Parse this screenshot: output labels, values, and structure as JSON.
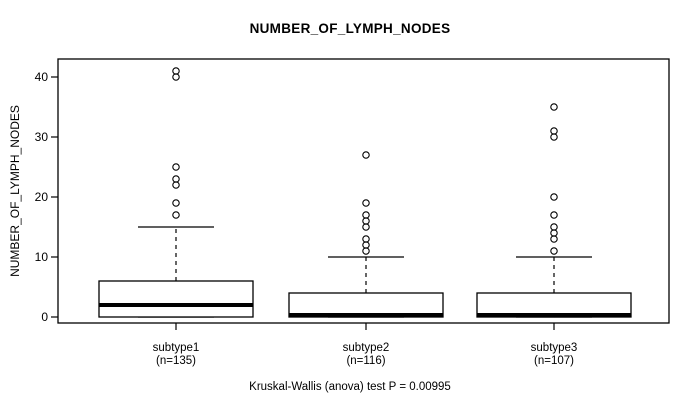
{
  "chart_data": {
    "type": "boxplot",
    "title": "NUMBER_OF_LYMPH_NODES",
    "ylabel": "NUMBER_OF_LYMPH_NODES",
    "xlabel": "",
    "annotation": "Kruskal-Wallis (anova) test P = 0.00995",
    "ylim": [
      -1,
      43
    ],
    "yticks": [
      0,
      10,
      20,
      30,
      40
    ],
    "grid": false,
    "legend": "none",
    "categories": [
      "subtype1",
      "subtype2",
      "subtype3"
    ],
    "series": [
      {
        "name": "subtype1",
        "n": 135,
        "n_label": "(n=135)",
        "whisker_low": 0,
        "q1": 0,
        "median": 2,
        "q3": 6,
        "whisker_high": 15,
        "outliers": [
          17,
          19,
          22,
          23,
          25,
          40,
          41
        ]
      },
      {
        "name": "subtype2",
        "n": 116,
        "n_label": "(n=116)",
        "whisker_low": 0,
        "q1": 0,
        "median": 0,
        "q3": 4,
        "whisker_high": 10,
        "outliers": [
          11,
          12,
          13,
          15,
          16,
          17,
          19,
          27
        ]
      },
      {
        "name": "subtype3",
        "n": 107,
        "n_label": "(n=107)",
        "whisker_low": 0,
        "q1": 0,
        "median": 0,
        "q3": 4,
        "whisker_high": 10,
        "outliers": [
          11,
          13,
          14,
          15,
          17,
          20,
          30,
          31,
          35
        ]
      }
    ],
    "colors": {
      "stroke": "#000000",
      "fill": "#ffffff",
      "background": "#ffffff",
      "text": "#000000"
    }
  }
}
